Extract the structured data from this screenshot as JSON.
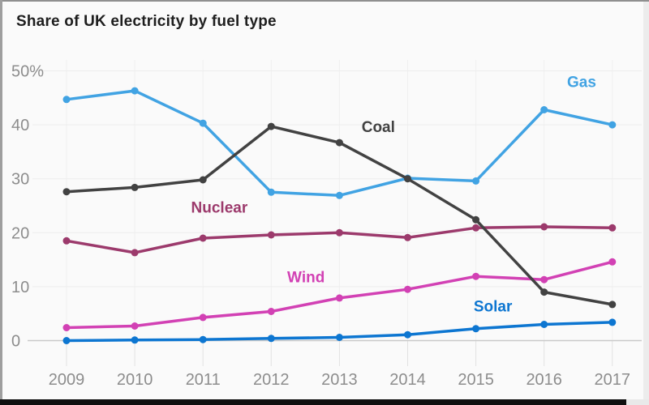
{
  "page": {
    "title": "Share of UK electricity by fuel type"
  },
  "chart_data": {
    "type": "line",
    "title": "Share of UK electricity by fuel type",
    "x": [
      2009,
      2010,
      2011,
      2012,
      2013,
      2014,
      2015,
      2016,
      2017
    ],
    "x_tick_labels": [
      "2009",
      "2010",
      "2011",
      "2012",
      "2013",
      "2014",
      "2015",
      "2016",
      "2017"
    ],
    "xlabel": "",
    "ylabel": "",
    "ylim": [
      0,
      52
    ],
    "y_ticks": [
      {
        "label": "50%",
        "value": 50
      },
      {
        "label": "40",
        "value": 40
      },
      {
        "label": "30",
        "value": 30
      },
      {
        "label": "20",
        "value": 20
      },
      {
        "label": "10",
        "value": 10
      },
      {
        "label": "0",
        "value": 0
      }
    ],
    "grid": true,
    "legend": "inline-labels-next-to-lines",
    "marker": "filled-circle",
    "series": [
      {
        "name": "Gas",
        "color": "#41a3e3",
        "values": [
          44.7,
          46.3,
          40.3,
          27.5,
          26.9,
          30.1,
          29.6,
          42.8,
          40.0
        ],
        "label_anchor_x": 2016.55,
        "label_anchor_y": 47.0
      },
      {
        "name": "Nuclear",
        "color": "#9c3a6c",
        "values": [
          18.5,
          16.3,
          19.0,
          19.6,
          20.0,
          19.1,
          20.9,
          21.1,
          20.9
        ],
        "label_anchor_x": 2011.24,
        "label_anchor_y": 23.7
      },
      {
        "name": "Wind",
        "color": "#d241b4",
        "values": [
          2.4,
          2.7,
          4.3,
          5.4,
          7.9,
          9.5,
          11.9,
          11.3,
          14.6
        ],
        "label_anchor_x": 2012.51,
        "label_anchor_y": 10.8
      },
      {
        "name": "Solar",
        "color": "#0d76d1",
        "values": [
          0.0,
          0.1,
          0.2,
          0.4,
          0.6,
          1.1,
          2.2,
          3.0,
          3.4
        ],
        "label_anchor_x": 2015.25,
        "label_anchor_y": 5.4
      },
      {
        "name": "Coal",
        "color": "#424242",
        "values": [
          27.6,
          28.4,
          29.8,
          39.7,
          36.7,
          30.0,
          22.4,
          9.0,
          6.7
        ],
        "label_anchor_x": 2013.57,
        "label_anchor_y": 38.7
      }
    ]
  },
  "colors": {
    "background": "#fafafa",
    "axis_text": "#8d8d8d",
    "title_text": "#1e1e1e",
    "grid_line": "#ededed",
    "vertical_grid_line": "#f0f0f0",
    "tick_stub": "#e2e2e2",
    "zero_line": "#c9c9c9",
    "bottom_bar": "#0f0f0f",
    "window_edge": "#9e9e9e"
  }
}
